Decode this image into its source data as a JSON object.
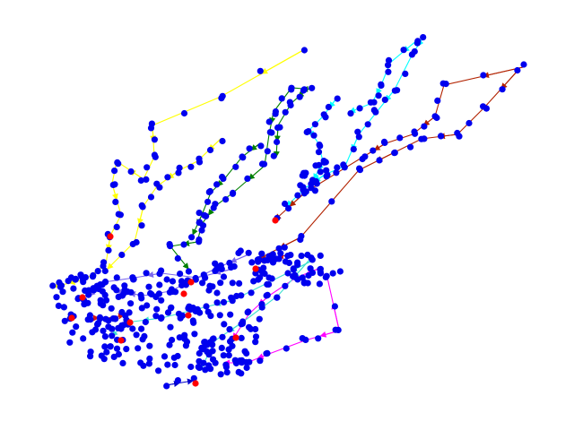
{
  "colors": {
    "background": "#ffffff",
    "node_default": "#0000ee",
    "node_highlight": "#ff0000"
  },
  "diagram": {
    "type": "network-route-graph",
    "node_count": 440,
    "highlight_node_count": 12,
    "route_colors": [
      "#ffff00",
      "#00ffff",
      "#008000",
      "#b22200",
      "#ff00ff",
      "#7b68ee",
      "#40e0d0",
      "#d01818",
      "#0000cc"
    ],
    "route_count": 9
  }
}
